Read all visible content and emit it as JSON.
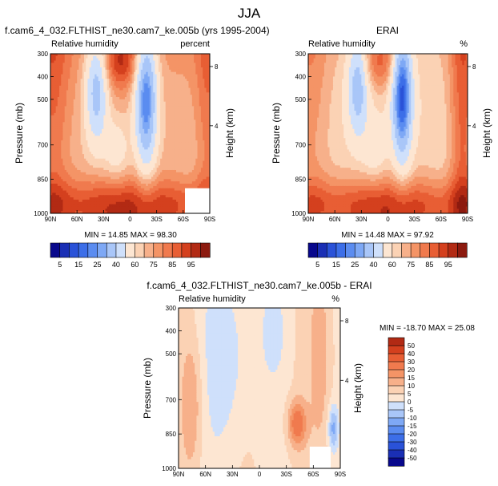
{
  "page_title": "JJA",
  "colors": {
    "neg": [
      "#08088c",
      "#1a2fb5",
      "#2a52d8",
      "#3c6ee8",
      "#5b8cf0",
      "#7ea8f5",
      "#a9c6f8",
      "#cfe0fb"
    ],
    "zero": "#fde6d2",
    "pos": [
      "#fbd2b4",
      "#f7b08a",
      "#f49466",
      "#f07a4e",
      "#e85e34",
      "#d4401e",
      "#b22a14",
      "#8c1a0f"
    ],
    "line": "#000000",
    "blank": "#ffffff"
  },
  "chart_data": [
    {
      "id": "model",
      "type": "heatmap",
      "title_left": "f.cam6_4_032.FLTHIST_ne30.cam7_ke.005b (yrs 1995-2004)",
      "variable_label": "Relative humidity",
      "units_label": "percent",
      "ylabel": "Pressure (mb)",
      "ylabel_right": "Height (km)",
      "x_ticks": [
        "90N",
        "60N",
        "30N",
        "0",
        "30S",
        "60S",
        "90S"
      ],
      "y_ticks": [
        "300",
        "400",
        "500",
        "700",
        "850",
        "1000"
      ],
      "y_ticks_right": [
        "8",
        "4"
      ],
      "x_range": [
        90,
        -90
      ],
      "y_range_mb": [
        300,
        1000
      ],
      "stats_label": "MIN = 14.85   MAX = 98.30",
      "min": 14.85,
      "max": 98.3
    },
    {
      "id": "obs",
      "type": "heatmap",
      "title_center": "ERAI",
      "variable_label": "Relative humidity",
      "units_label": "%",
      "ylabel": "Pressure (mb)",
      "ylabel_right": "Height (km)",
      "x_ticks": [
        "90N",
        "60N",
        "30N",
        "0",
        "30S",
        "60S",
        "90S"
      ],
      "y_ticks": [
        "300",
        "400",
        "500",
        "700",
        "850",
        "1000"
      ],
      "y_ticks_right": [
        "8",
        "4"
      ],
      "x_range": [
        90,
        -90
      ],
      "y_range_mb": [
        300,
        1000
      ],
      "stats_label": "MIN = 14.48   MAX = 97.92",
      "min": 14.48,
      "max": 97.92
    },
    {
      "id": "diff",
      "type": "heatmap",
      "title_center": "f.cam6_4_032.FLTHIST_ne30.cam7_ke.005b - ERAI",
      "variable_label": "Relative humidity",
      "units_label": "%",
      "ylabel": "Pressure (mb)",
      "ylabel_right": "Height (km)",
      "x_ticks": [
        "90N",
        "60N",
        "30N",
        "0",
        "30S",
        "60S",
        "90S"
      ],
      "y_ticks": [
        "300",
        "400",
        "500",
        "700",
        "850",
        "1000"
      ],
      "y_ticks_right": [
        "8",
        "4"
      ],
      "x_range": [
        90,
        -90
      ],
      "y_range_mb": [
        300,
        1000
      ],
      "stats_label": "MIN = -18.70   MAX = 25.08",
      "min": -18.7,
      "max": 25.08
    }
  ],
  "colorbar_abs": {
    "labels": [
      "5",
      "15",
      "25",
      "40",
      "60",
      "75",
      "85",
      "95"
    ]
  },
  "colorbar_diff": {
    "labels": [
      "50",
      "40",
      "30",
      "20",
      "15",
      "10",
      "5",
      "0",
      "-5",
      "-10",
      "-15",
      "-20",
      "-30",
      "-40",
      "-50"
    ]
  }
}
